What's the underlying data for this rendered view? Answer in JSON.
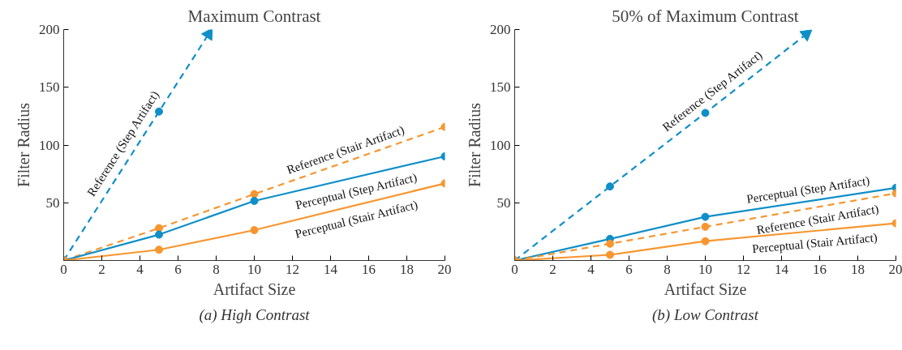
{
  "chart_data": [
    {
      "type": "line",
      "title": "Maximum Contrast",
      "xlabel": "Artifact Size",
      "ylabel": "Filter Radius",
      "x": [
        0,
        5,
        10,
        20
      ],
      "xlim": [
        0,
        20
      ],
      "ylim": [
        0,
        200
      ],
      "xticks": [
        0,
        2,
        4,
        6,
        8,
        10,
        12,
        14,
        16,
        18,
        20
      ],
      "yticks": [
        50,
        100,
        150,
        200
      ],
      "marker": "circle",
      "grid": false,
      "annotations": [
        "(a) High Contrast"
      ],
      "series": [
        {
          "name": "Reference (Step Artifact)",
          "color": "#0f8fc8",
          "line_style": "dashed",
          "x": [
            0,
            5,
            7.6
          ],
          "values": [
            0,
            129,
            196
          ]
        },
        {
          "name": "Reference (Stair Artifact)",
          "color": "#f7962f",
          "line_style": "dashed",
          "values": [
            0,
            28,
            57.5,
            115.7
          ]
        },
        {
          "name": "Perceptual (Step Artifact)",
          "color": "#0f8fc8",
          "line_style": "solid",
          "values": [
            0,
            22.4,
            51.6,
            90.2
          ]
        },
        {
          "name": "Perceptual (Stair Artifact)",
          "color": "#f7962f",
          "line_style": "solid",
          "values": [
            0,
            9.3,
            26.3,
            66.8
          ]
        }
      ]
    },
    {
      "type": "line",
      "title": "50% of Maximum Contrast",
      "xlabel": "Artifact Size",
      "ylabel": "Filter Radius",
      "x": [
        0,
        5,
        10,
        20
      ],
      "xlim": [
        0,
        20
      ],
      "ylim": [
        0,
        200
      ],
      "xticks": [
        0,
        2,
        4,
        6,
        8,
        10,
        12,
        14,
        16,
        18,
        20
      ],
      "yticks": [
        50,
        100,
        150,
        200
      ],
      "marker": "circle",
      "grid": false,
      "annotations": [
        "(b) Low Contrast"
      ],
      "series": [
        {
          "name": "Reference (Step Artifact)",
          "color": "#0f8fc8",
          "line_style": "dashed",
          "x": [
            0,
            5,
            10,
            15.3
          ],
          "values": [
            0,
            64.1,
            127.8,
            196
          ]
        },
        {
          "name": "Perceptual (Step Artifact)",
          "color": "#0f8fc8",
          "line_style": "solid",
          "values": [
            0,
            18.7,
            37.8,
            62.9
          ]
        },
        {
          "name": "Reference (Stair Artifact)",
          "color": "#f7962f",
          "line_style": "dashed",
          "values": [
            0,
            14.5,
            29.2,
            58.2
          ]
        },
        {
          "name": "Perceptual (Stair Artifact)",
          "color": "#f7962f",
          "line_style": "solid",
          "values": [
            0,
            4.9,
            16.7,
            32.2
          ]
        }
      ]
    }
  ]
}
